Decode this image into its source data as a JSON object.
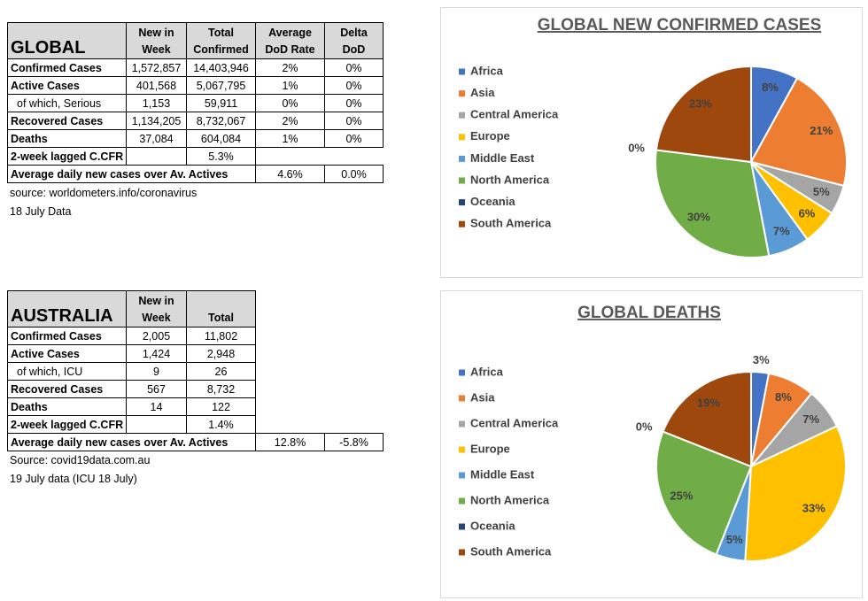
{
  "global_table": {
    "header": [
      "GLOBAL",
      "New in Week",
      "Total Confirmed",
      "Average DoD Rate",
      "Delta DoD"
    ],
    "rows": [
      [
        "Confirmed Cases",
        "1,572,857",
        "14,403,946",
        "2%",
        "0%"
      ],
      [
        "Active Cases",
        "401,568",
        "5,067,795",
        "1%",
        "0%"
      ],
      [
        "of which, Serious",
        "1,153",
        "59,911",
        "0%",
        "0%"
      ],
      [
        "Recovered Cases",
        "1,134,205",
        "8,732,067",
        "2%",
        "0%"
      ],
      [
        "Deaths",
        "37,084",
        "604,084",
        "1%",
        "0%"
      ]
    ],
    "cfr": [
      "2-week lagged C.CFR",
      "5.3%"
    ],
    "average": [
      "Average daily new cases over Av. Actives",
      "4.6%",
      "0.0%"
    ],
    "notes": [
      "source: worldometers.info/coronavirus",
      "18 July Data"
    ]
  },
  "australia_table": {
    "header": [
      "AUSTRALIA",
      "New in Week",
      "Total"
    ],
    "rows": [
      [
        "Confirmed Cases",
        "2,005",
        "11,802"
      ],
      [
        "Active Cases",
        "1,424",
        "2,948"
      ],
      [
        "of which, ICU",
        "9",
        "26"
      ],
      [
        "Recovered Cases",
        "567",
        "8,732"
      ],
      [
        "Deaths",
        "14",
        "122"
      ]
    ],
    "cfr": [
      "2-week lagged C.CFR",
      "1.4%"
    ],
    "average": [
      "Average daily new cases over Av. Actives",
      "12.8%",
      "-5.8%"
    ],
    "notes": [
      "Source: covid19data.com.au",
      "19 July data (ICU 18 July)"
    ]
  },
  "chart_data": [
    {
      "type": "pie",
      "title": "GLOBAL NEW CONFIRMED CASES",
      "categories": [
        "Africa",
        "Asia",
        "Central America",
        "Europe",
        "Middle East",
        "North America",
        "Oceania",
        "South America"
      ],
      "values": [
        8,
        21,
        5,
        6,
        7,
        30,
        0,
        23
      ],
      "value_labels": [
        "8%",
        "21%",
        "5%",
        "6%",
        "7%",
        "30%",
        "0%",
        "23%"
      ],
      "colors": [
        "#4472c4",
        "#ed7d31",
        "#a5a5a5",
        "#ffc000",
        "#5b9bd5",
        "#70ad47",
        "#264478",
        "#9e480e"
      ],
      "legend": "left"
    },
    {
      "type": "pie",
      "title": "GLOBAL DEATHS",
      "categories": [
        "Africa",
        "Asia",
        "Central America",
        "Europe",
        "Middle East",
        "North America",
        "Oceania",
        "South America"
      ],
      "values": [
        3,
        8,
        7,
        33,
        5,
        25,
        0,
        19
      ],
      "value_labels": [
        "3%",
        "8%",
        "7%",
        "33%",
        "5%",
        "25%",
        "0%",
        "19%"
      ],
      "colors": [
        "#4472c4",
        "#ed7d31",
        "#a5a5a5",
        "#ffc000",
        "#5b9bd5",
        "#70ad47",
        "#264478",
        "#9e480e"
      ],
      "legend": "left"
    }
  ]
}
